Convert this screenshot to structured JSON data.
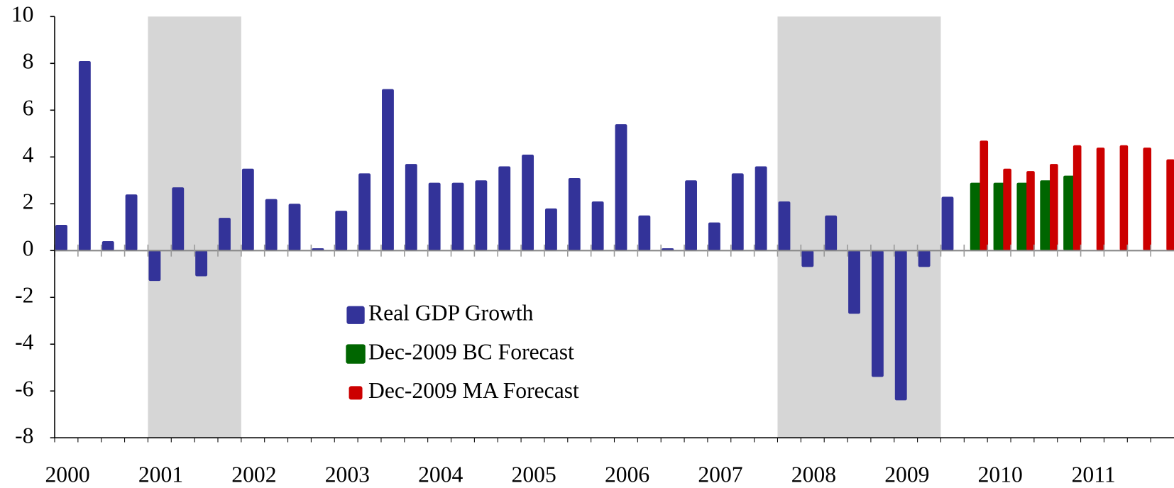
{
  "chart_data": {
    "type": "bar",
    "categories": [
      "2000",
      null,
      null,
      null,
      "2001",
      null,
      null,
      null,
      "2002",
      null,
      null,
      null,
      "2003",
      null,
      null,
      null,
      "2004",
      null,
      null,
      null,
      "2005",
      null,
      null,
      null,
      "2006",
      null,
      null,
      null,
      "2007",
      null,
      null,
      null,
      "2008",
      null,
      null,
      null,
      "2009",
      null,
      null,
      null,
      "2010",
      null,
      null,
      null,
      "2011",
      null,
      null,
      null
    ],
    "series": [
      {
        "name": "Real GDP Growth",
        "color": "#333399",
        "values": [
          1.1,
          8.1,
          0.4,
          2.4,
          -1.3,
          2.7,
          -1.1,
          1.4,
          3.5,
          2.2,
          2.0,
          0.1,
          1.7,
          3.3,
          6.9,
          3.7,
          2.9,
          2.9,
          3.0,
          3.6,
          4.1,
          1.8,
          3.1,
          2.1,
          5.4,
          1.5,
          0.1,
          3.0,
          1.2,
          3.3,
          3.6,
          2.1,
          -0.7,
          1.5,
          -2.7,
          -5.4,
          -6.4,
          -0.7,
          2.3,
          null,
          null,
          null,
          null,
          null,
          null,
          null,
          null,
          null
        ]
      },
      {
        "name": "Dec-2009 BC Forecast",
        "color": "#006600",
        "values": [
          null,
          null,
          null,
          null,
          null,
          null,
          null,
          null,
          null,
          null,
          null,
          null,
          null,
          null,
          null,
          null,
          null,
          null,
          null,
          null,
          null,
          null,
          null,
          null,
          null,
          null,
          null,
          null,
          null,
          null,
          null,
          null,
          null,
          null,
          null,
          null,
          null,
          null,
          null,
          2.9,
          2.9,
          2.9,
          3.0,
          3.2,
          null,
          null,
          null,
          null
        ]
      },
      {
        "name": "Dec-2009 MA Forecast",
        "color": "#cc0000",
        "values": [
          null,
          null,
          null,
          null,
          null,
          null,
          null,
          null,
          null,
          null,
          null,
          null,
          null,
          null,
          null,
          null,
          null,
          null,
          null,
          null,
          null,
          null,
          null,
          null,
          null,
          null,
          null,
          null,
          null,
          null,
          null,
          null,
          null,
          null,
          null,
          null,
          null,
          null,
          null,
          4.7,
          3.5,
          3.4,
          3.7,
          4.5,
          4.4,
          4.5,
          4.4,
          3.9
        ]
      }
    ],
    "recessions": [
      [
        4,
        8
      ],
      [
        31,
        38
      ]
    ],
    "ylim": [
      -8,
      10
    ],
    "yticks": [
      -8,
      -6,
      -4,
      -2,
      0,
      2,
      4,
      6,
      8,
      10
    ]
  }
}
